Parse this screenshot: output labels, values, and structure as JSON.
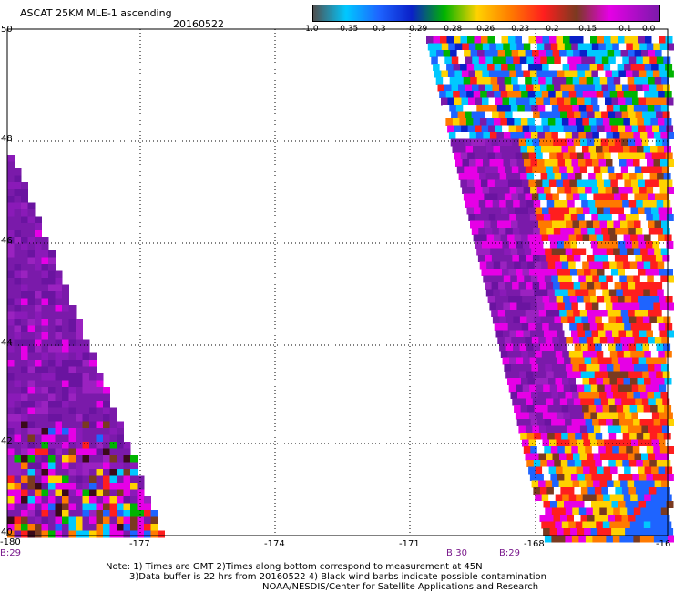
{
  "header": {
    "title": "ASCAT 25KM MLE-1 ascending",
    "date": "20160522"
  },
  "colorbar": {
    "labels": [
      "-1.0",
      "-0.35",
      "-0.3",
      "-0.29",
      "-0.28",
      "-0.26",
      "-0.23",
      "-0.2",
      "-0.15",
      "-0.1",
      "0.0"
    ],
    "colors": [
      "#505050",
      "#00c8ff",
      "#1e64ff",
      "#0a20c8",
      "#00b400",
      "#ffd200",
      "#ff7a00",
      "#ff1e1e",
      "#7a3a20",
      "#e600e6",
      "#7a1aaa"
    ]
  },
  "axes": {
    "lon_labels": [
      "-180",
      "-177",
      "-174",
      "-171",
      "-168",
      "-16"
    ],
    "lat_labels": [
      "50",
      "48",
      "46",
      "44",
      "42",
      "40"
    ]
  },
  "time_labels": [
    "B:29",
    "B:30",
    "B:29"
  ],
  "notes": {
    "line1": "Note: 1) Times are GMT 2)Times along bottom correspond to measurement at 45N",
    "line2": "3)Data buffer is 22 hrs from 20160522 4) Black wind barbs indicate possible contamination",
    "line3": "NOAA/NESDIS/Center for Satellite Applications and Research"
  }
}
